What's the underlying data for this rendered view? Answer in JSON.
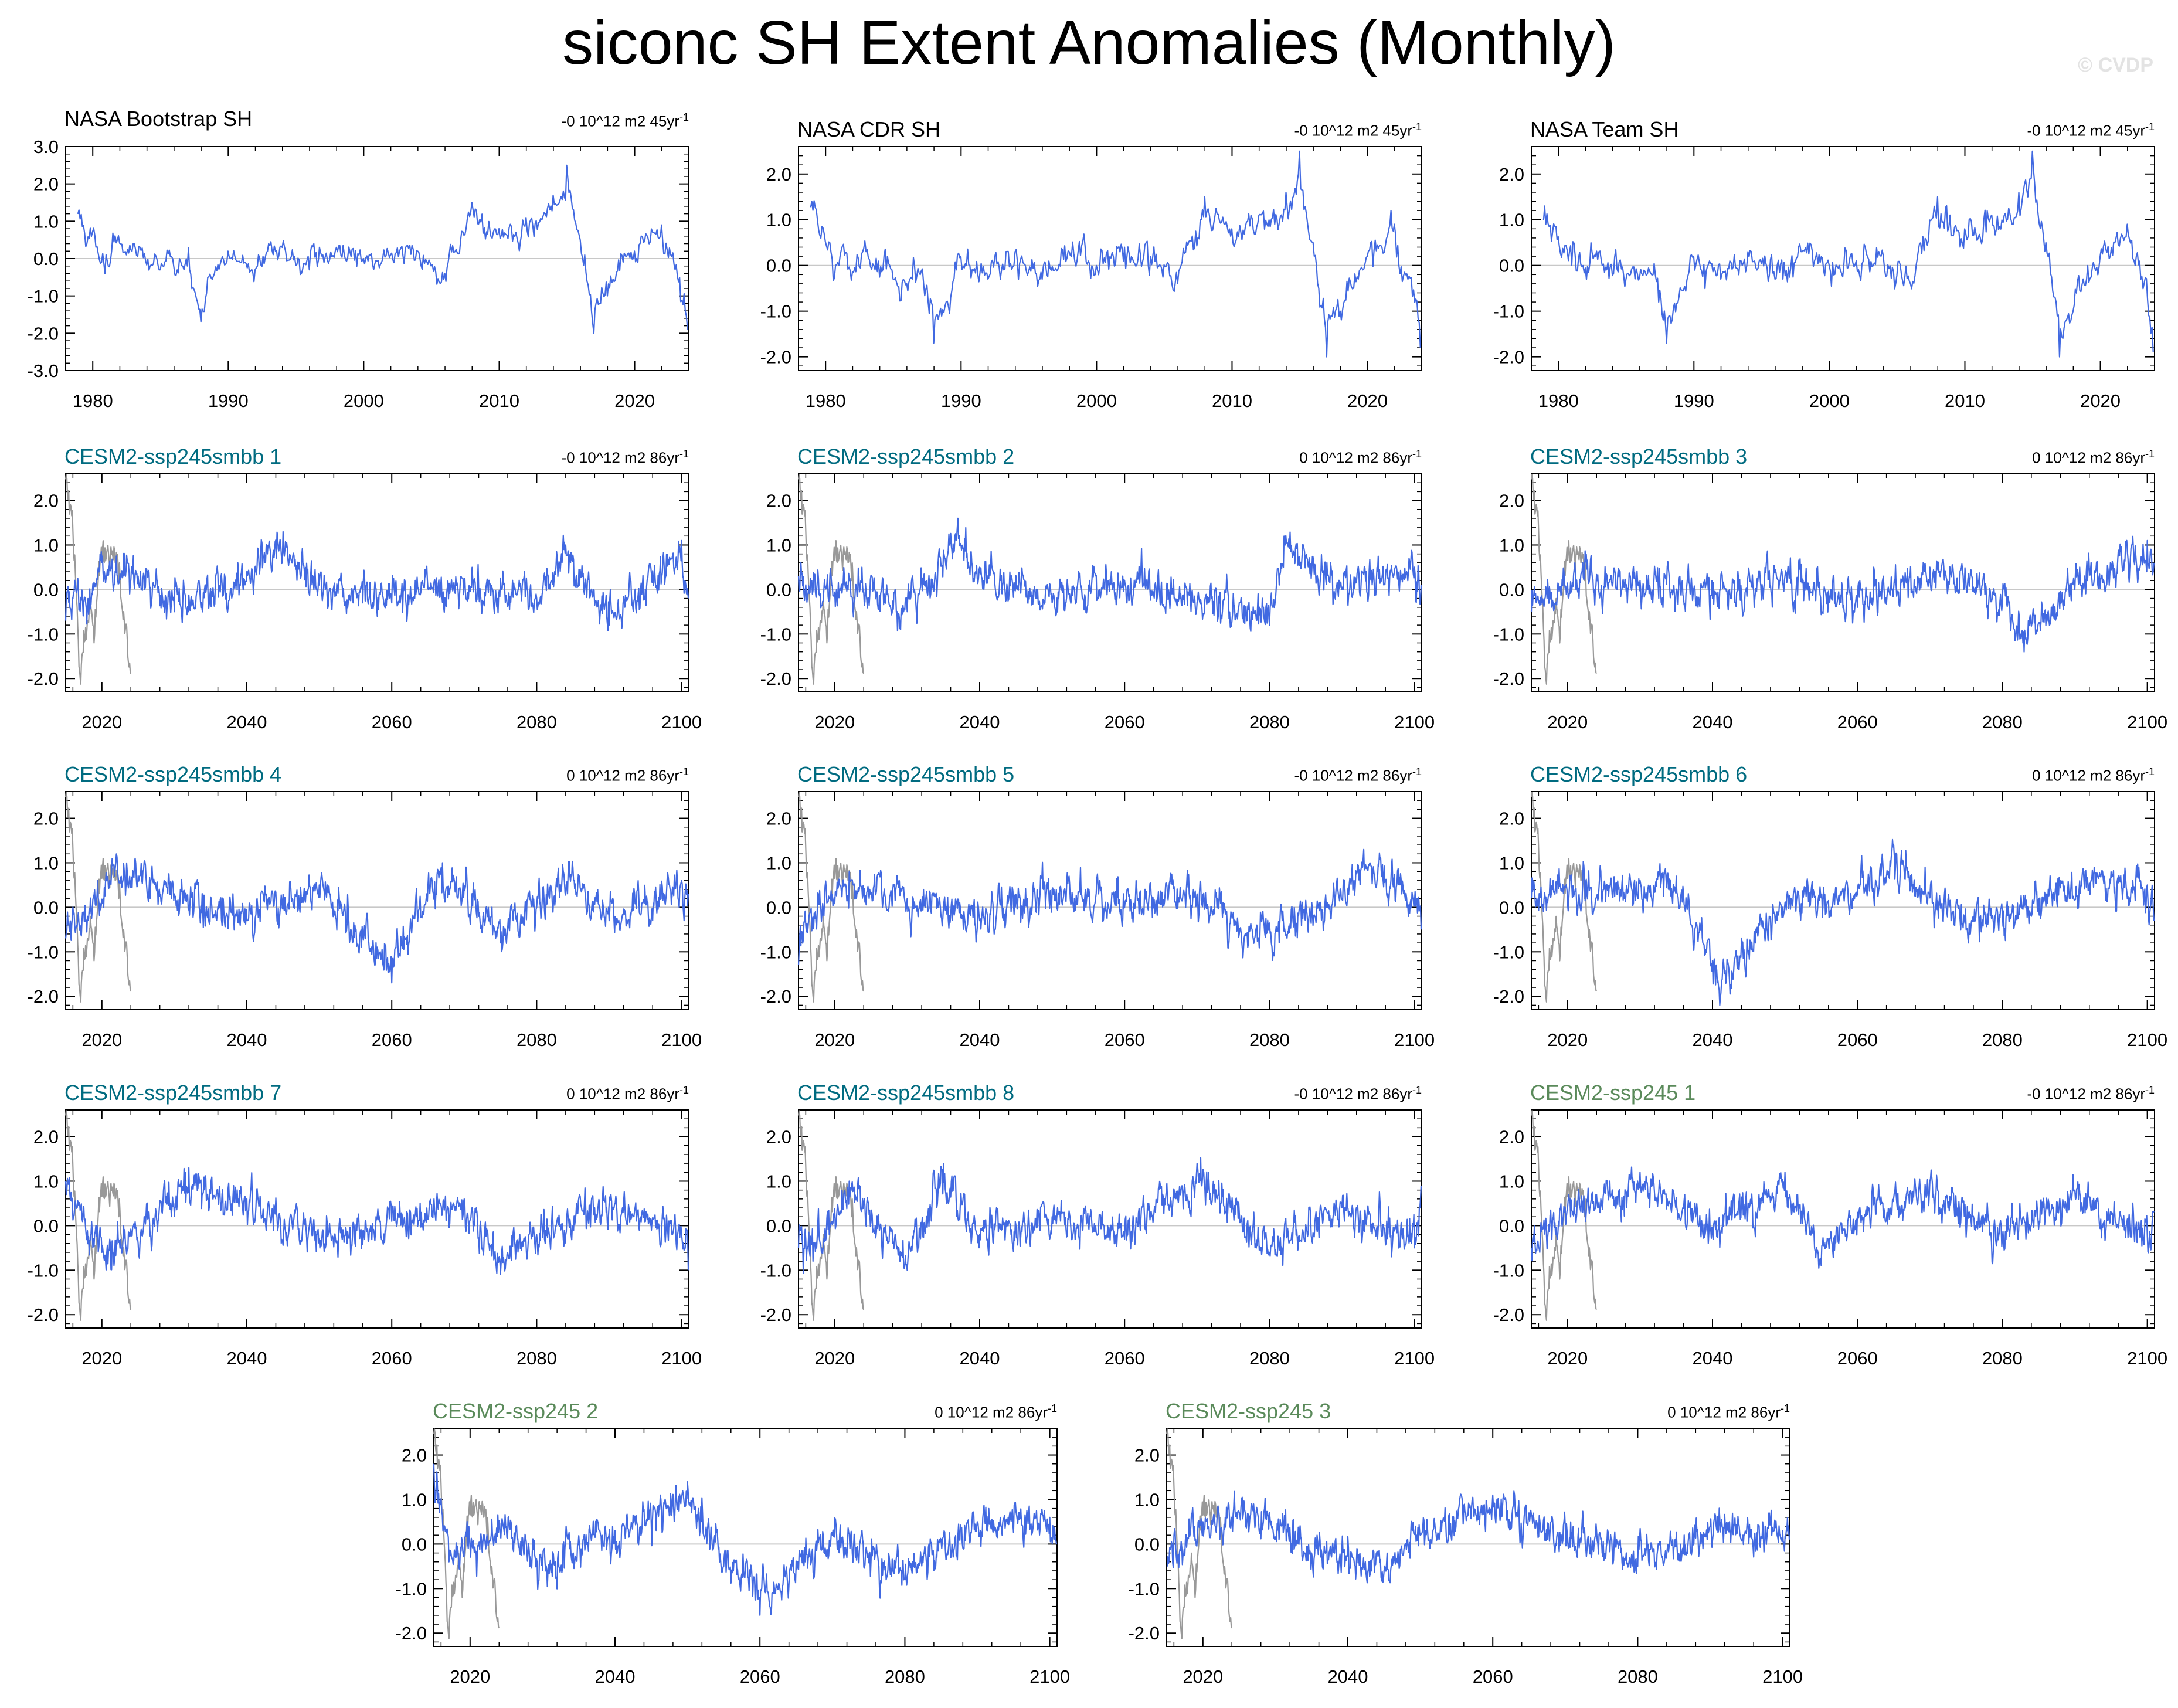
{
  "title": "siconc SH Extent Anomalies (Monthly)",
  "watermark": "© CVDP",
  "colors": {
    "model_line": "#4169e1",
    "obs_overlay": "#999999",
    "zero_line": "#c8c8c8",
    "smbb_title": "#006b80",
    "ssp_title": "#5a8a5a",
    "obs_title": "#000000"
  },
  "panels": [
    {
      "title": "NASA Bootstrap SH",
      "group": "obs",
      "trend": "-0 10^12 m2 45yr",
      "trend_exp": "-1",
      "xlim": [
        1978,
        2024
      ],
      "xticks": [
        1980,
        1990,
        2000,
        2010,
        2020
      ],
      "ylim": [
        -3,
        3
      ],
      "yticks": [
        "3.0",
        "2.0",
        "1.0",
        "0.0",
        "-1.0",
        "-2.0",
        "-3.0"
      ],
      "yvals": [
        3,
        2,
        1,
        0,
        -1,
        -2,
        -3
      ]
    },
    {
      "title": "NASA CDR SH",
      "group": "obs",
      "trend": "-0 10^12 m2 45yr",
      "trend_exp": "-1",
      "xlim": [
        1978,
        2024
      ],
      "xticks": [
        1980,
        1990,
        2000,
        2010,
        2020
      ],
      "ylim": [
        -2.3,
        2.6
      ],
      "yticks": [
        "2.0",
        "1.0",
        "0.0",
        "-1.0",
        "-2.0"
      ],
      "yvals": [
        2,
        1,
        0,
        -1,
        -2
      ]
    },
    {
      "title": "NASA Team SH",
      "group": "obs",
      "trend": "-0 10^12 m2 45yr",
      "trend_exp": "-1",
      "xlim": [
        1978,
        2024
      ],
      "xticks": [
        1980,
        1990,
        2000,
        2010,
        2020
      ],
      "ylim": [
        -2.3,
        2.6
      ],
      "yticks": [
        "2.0",
        "1.0",
        "0.0",
        "-1.0",
        "-2.0"
      ],
      "yvals": [
        2,
        1,
        0,
        -1,
        -2
      ]
    },
    {
      "title": "CESM2-ssp245smbb 1",
      "group": "smbb",
      "trend": "-0 10^12 m2 86yr",
      "trend_exp": "-1",
      "xlim": [
        2015,
        2101
      ],
      "xticks": [
        2020,
        2040,
        2060,
        2080,
        2100
      ],
      "ylim": [
        -2.3,
        2.6
      ],
      "yticks": [
        "2.0",
        "1.0",
        "0.0",
        "-1.0",
        "-2.0"
      ],
      "yvals": [
        2,
        1,
        0,
        -1,
        -2
      ]
    },
    {
      "title": "CESM2-ssp245smbb 2",
      "group": "smbb",
      "trend": "0 10^12 m2 86yr",
      "trend_exp": "-1",
      "xlim": [
        2015,
        2101
      ],
      "xticks": [
        2020,
        2040,
        2060,
        2080,
        2100
      ],
      "ylim": [
        -2.3,
        2.6
      ],
      "yticks": [
        "2.0",
        "1.0",
        "0.0",
        "-1.0",
        "-2.0"
      ],
      "yvals": [
        2,
        1,
        0,
        -1,
        -2
      ]
    },
    {
      "title": "CESM2-ssp245smbb 3",
      "group": "smbb",
      "trend": "0 10^12 m2 86yr",
      "trend_exp": "-1",
      "xlim": [
        2015,
        2101
      ],
      "xticks": [
        2020,
        2040,
        2060,
        2080,
        2100
      ],
      "ylim": [
        -2.3,
        2.6
      ],
      "yticks": [
        "2.0",
        "1.0",
        "0.0",
        "-1.0",
        "-2.0"
      ],
      "yvals": [
        2,
        1,
        0,
        -1,
        -2
      ]
    },
    {
      "title": "CESM2-ssp245smbb 4",
      "group": "smbb",
      "trend": "0 10^12 m2 86yr",
      "trend_exp": "-1",
      "xlim": [
        2015,
        2101
      ],
      "xticks": [
        2020,
        2040,
        2060,
        2080,
        2100
      ],
      "ylim": [
        -2.3,
        2.6
      ],
      "yticks": [
        "2.0",
        "1.0",
        "0.0",
        "-1.0",
        "-2.0"
      ],
      "yvals": [
        2,
        1,
        0,
        -1,
        -2
      ]
    },
    {
      "title": "CESM2-ssp245smbb 5",
      "group": "smbb",
      "trend": "-0 10^12 m2 86yr",
      "trend_exp": "-1",
      "xlim": [
        2015,
        2101
      ],
      "xticks": [
        2020,
        2040,
        2060,
        2080,
        2100
      ],
      "ylim": [
        -2.3,
        2.6
      ],
      "yticks": [
        "2.0",
        "1.0",
        "0.0",
        "-1.0",
        "-2.0"
      ],
      "yvals": [
        2,
        1,
        0,
        -1,
        -2
      ]
    },
    {
      "title": "CESM2-ssp245smbb 6",
      "group": "smbb",
      "trend": "0 10^12 m2 86yr",
      "trend_exp": "-1",
      "xlim": [
        2015,
        2101
      ],
      "xticks": [
        2020,
        2040,
        2060,
        2080,
        2100
      ],
      "ylim": [
        -2.3,
        2.6
      ],
      "yticks": [
        "2.0",
        "1.0",
        "0.0",
        "-1.0",
        "-2.0"
      ],
      "yvals": [
        2,
        1,
        0,
        -1,
        -2
      ]
    },
    {
      "title": "CESM2-ssp245smbb 7",
      "group": "smbb",
      "trend": "0 10^12 m2 86yr",
      "trend_exp": "-1",
      "xlim": [
        2015,
        2101
      ],
      "xticks": [
        2020,
        2040,
        2060,
        2080,
        2100
      ],
      "ylim": [
        -2.3,
        2.6
      ],
      "yticks": [
        "2.0",
        "1.0",
        "0.0",
        "-1.0",
        "-2.0"
      ],
      "yvals": [
        2,
        1,
        0,
        -1,
        -2
      ]
    },
    {
      "title": "CESM2-ssp245smbb 8",
      "group": "smbb",
      "trend": "-0 10^12 m2 86yr",
      "trend_exp": "-1",
      "xlim": [
        2015,
        2101
      ],
      "xticks": [
        2020,
        2040,
        2060,
        2080,
        2100
      ],
      "ylim": [
        -2.3,
        2.6
      ],
      "yticks": [
        "2.0",
        "1.0",
        "0.0",
        "-1.0",
        "-2.0"
      ],
      "yvals": [
        2,
        1,
        0,
        -1,
        -2
      ]
    },
    {
      "title": "CESM2-ssp245 1",
      "group": "ssp",
      "trend": "-0 10^12 m2 86yr",
      "trend_exp": "-1",
      "xlim": [
        2015,
        2101
      ],
      "xticks": [
        2020,
        2040,
        2060,
        2080,
        2100
      ],
      "ylim": [
        -2.3,
        2.6
      ],
      "yticks": [
        "2.0",
        "1.0",
        "0.0",
        "-1.0",
        "-2.0"
      ],
      "yvals": [
        2,
        1,
        0,
        -1,
        -2
      ]
    },
    {
      "title": "CESM2-ssp245 2",
      "group": "ssp",
      "trend": "0 10^12 m2 86yr",
      "trend_exp": "-1",
      "xlim": [
        2015,
        2101
      ],
      "xticks": [
        2020,
        2040,
        2060,
        2080,
        2100
      ],
      "ylim": [
        -2.3,
        2.6
      ],
      "yticks": [
        "2.0",
        "1.0",
        "0.0",
        "-1.0",
        "-2.0"
      ],
      "yvals": [
        2,
        1,
        0,
        -1,
        -2
      ]
    },
    {
      "title": "CESM2-ssp245 3",
      "group": "ssp",
      "trend": "0 10^12 m2 86yr",
      "trend_exp": "-1",
      "xlim": [
        2015,
        2101
      ],
      "xticks": [
        2020,
        2040,
        2060,
        2080,
        2100
      ],
      "ylim": [
        -2.3,
        2.6
      ],
      "yticks": [
        "2.0",
        "1.0",
        "0.0",
        "-1.0",
        "-2.0"
      ],
      "yvals": [
        2,
        1,
        0,
        -1,
        -2
      ]
    }
  ],
  "chart_data": [
    {
      "type": "line",
      "title": "NASA Bootstrap SH",
      "x_range": [
        1978.9,
        2023.9
      ],
      "ylim": [
        -3,
        3
      ],
      "series": [
        {
          "name": "NASA Bootstrap SH",
          "x": [
            1979,
            1981,
            1983,
            1985,
            1987,
            1988,
            1990,
            1992,
            1994,
            1996,
            1998,
            2000,
            2002,
            2004,
            2006,
            2008,
            2010,
            2012,
            2014,
            2015,
            2016,
            2017,
            2018,
            2020,
            2022,
            2023,
            2023.9
          ],
          "values": [
            1.3,
            0.1,
            0.4,
            -0.3,
            -0.2,
            -1.7,
            0.2,
            -0.3,
            0.3,
            -0.3,
            0.3,
            0.0,
            0.1,
            0.2,
            -0.4,
            1.5,
            0.8,
            1.1,
            1.7,
            2.5,
            0.5,
            -2.0,
            -1.0,
            0.2,
            0.9,
            -0.3,
            -1.9
          ]
        }
      ]
    },
    {
      "type": "line",
      "title": "NASA CDR SH",
      "x_range": [
        1978.9,
        2023.9
      ],
      "ylim": [
        -2.3,
        2.6
      ],
      "series": [
        {
          "name": "NASA CDR SH",
          "x": [
            1979,
            1981,
            1983,
            1985,
            1987,
            1988,
            1990,
            1992,
            1994,
            1996,
            1998,
            2000,
            2002,
            2004,
            2006,
            2008,
            2010,
            2012,
            2014,
            2015,
            2016,
            2017,
            2018,
            2020,
            2022,
            2023,
            2023.9
          ],
          "values": [
            1.4,
            0.0,
            0.3,
            -0.3,
            -0.2,
            -1.7,
            0.2,
            -0.3,
            0.3,
            -0.3,
            0.3,
            0.0,
            0.1,
            0.2,
            -0.4,
            1.5,
            0.8,
            1.1,
            1.6,
            2.5,
            0.5,
            -2.0,
            -1.0,
            0.2,
            0.9,
            -0.3,
            -1.8
          ]
        }
      ]
    },
    {
      "type": "line",
      "title": "NASA Team SH",
      "x_range": [
        1978.9,
        2023.9
      ],
      "ylim": [
        -2.3,
        2.6
      ],
      "series": [
        {
          "name": "NASA Team SH",
          "x": [
            1979,
            1981,
            1983,
            1985,
            1987,
            1988,
            1990,
            1992,
            1994,
            1996,
            1998,
            2000,
            2002,
            2004,
            2006,
            2008,
            2010,
            2012,
            2014,
            2015,
            2016,
            2017,
            2018,
            2020,
            2022,
            2023,
            2023.9
          ],
          "values": [
            1.3,
            0.0,
            0.3,
            -0.3,
            -0.2,
            -1.7,
            0.2,
            -0.3,
            0.3,
            -0.3,
            0.3,
            0.0,
            0.1,
            0.2,
            -0.4,
            1.5,
            0.8,
            1.1,
            1.6,
            2.5,
            0.5,
            -2.0,
            -1.0,
            0.2,
            0.9,
            -0.3,
            -1.9
          ]
        }
      ]
    },
    {
      "type": "line",
      "title": "CESM2-ssp245smbb 1",
      "x_range": [
        2015,
        2101
      ],
      "ylim": [
        -2.3,
        2.6
      ],
      "note": "monthly series; key excursions",
      "series": [
        {
          "x": [
            2015,
            2016,
            2018,
            2020,
            2025,
            2030,
            2040,
            2045,
            2050,
            2060,
            2070,
            2080,
            2084,
            2090,
            2095,
            2100,
            2101
          ],
          "values": [
            -0.7,
            -0.2,
            -0.3,
            0.6,
            0.3,
            -0.5,
            0.4,
            1.3,
            0.1,
            -0.3,
            0.2,
            -0.2,
            1.0,
            -0.8,
            0.0,
            1.1,
            -0.2
          ]
        }
      ]
    },
    {
      "type": "line",
      "title": "CESM2-ssp245smbb 2",
      "x_range": [
        2015,
        2101
      ],
      "ylim": [
        -2.3,
        2.6
      ],
      "series": [
        {
          "x": [
            2015,
            2018,
            2022,
            2030,
            2037,
            2040,
            2050,
            2060,
            2070,
            2080,
            2082,
            2090,
            2100,
            2101
          ],
          "values": [
            0.3,
            -0.1,
            0.2,
            -0.5,
            1.6,
            0.5,
            -0.3,
            0.2,
            -0.3,
            -0.8,
            1.2,
            0.0,
            0.5,
            0.1
          ]
        }
      ]
    },
    {
      "type": "line",
      "title": "CESM2-ssp245smbb 3",
      "x_range": [
        2015,
        2101
      ],
      "ylim": [
        -2.3,
        2.6
      ],
      "series": [
        {
          "x": [
            2015,
            2018,
            2022,
            2030,
            2040,
            2050,
            2060,
            2070,
            2080,
            2083,
            2090,
            2100,
            2101
          ],
          "values": [
            -0.5,
            -0.3,
            0.4,
            0.2,
            -0.2,
            0.3,
            -0.4,
            0.5,
            -0.3,
            -1.4,
            0.0,
            1.1,
            0.6
          ]
        }
      ]
    },
    {
      "type": "line",
      "title": "CESM2-ssp245smbb 4",
      "x_range": [
        2015,
        2101
      ],
      "ylim": [
        -2.3,
        2.6
      ],
      "series": [
        {
          "x": [
            2015,
            2018,
            2022,
            2030,
            2040,
            2050,
            2060,
            2067,
            2075,
            2085,
            2090,
            2100,
            2101
          ],
          "values": [
            -0.7,
            -0.2,
            1.2,
            0.3,
            -0.3,
            0.5,
            -1.7,
            1.0,
            -0.8,
            0.9,
            -0.3,
            0.6,
            0.3
          ]
        }
      ]
    },
    {
      "type": "line",
      "title": "CESM2-ssp245smbb 5",
      "x_range": [
        2015,
        2101
      ],
      "ylim": [
        -2.3,
        2.6
      ],
      "series": [
        {
          "x": [
            2015,
            2016,
            2022,
            2030,
            2040,
            2050,
            2060,
            2070,
            2077,
            2090,
            2093,
            2100,
            2101
          ],
          "values": [
            -1.3,
            -0.4,
            0.8,
            0.2,
            -0.3,
            0.4,
            0.0,
            0.3,
            -0.9,
            0.2,
            1.3,
            0.1,
            -0.5
          ]
        }
      ]
    },
    {
      "type": "line",
      "title": "CESM2-ssp245smbb 6",
      "x_range": [
        2015,
        2101
      ],
      "ylim": [
        -2.3,
        2.6
      ],
      "series": [
        {
          "x": [
            2015,
            2018,
            2025,
            2035,
            2041,
            2050,
            2060,
            2065,
            2075,
            2085,
            2095,
            2100,
            2101
          ],
          "values": [
            0.2,
            0.6,
            0.4,
            0.7,
            -2.2,
            0.1,
            0.3,
            1.4,
            -0.5,
            0.2,
            0.8,
            0.5,
            -0.3
          ]
        }
      ]
    },
    {
      "type": "line",
      "title": "CESM2-ssp245smbb 7",
      "x_range": [
        2015,
        2101
      ],
      "ylim": [
        -2.3,
        2.6
      ],
      "series": [
        {
          "x": [
            2015,
            2020,
            2025,
            2032,
            2040,
            2050,
            2060,
            2070,
            2075,
            2080,
            2090,
            2100,
            2101
          ],
          "values": [
            1.0,
            -0.6,
            -0.4,
            1.3,
            0.6,
            -0.3,
            0.1,
            0.6,
            -1.1,
            -0.2,
            0.5,
            -0.2,
            -1.0
          ]
        }
      ]
    },
    {
      "type": "line",
      "title": "CESM2-ssp245smbb 8",
      "x_range": [
        2015,
        2101
      ],
      "ylim": [
        -2.3,
        2.6
      ],
      "series": [
        {
          "x": [
            2015,
            2017,
            2022,
            2030,
            2035,
            2040,
            2050,
            2060,
            2070,
            2080,
            2090,
            2100,
            2101
          ],
          "values": [
            -0.5,
            -0.8,
            1.0,
            -1.0,
            1.4,
            -0.2,
            0.2,
            -0.3,
            1.4,
            -0.6,
            0.4,
            -0.5,
            0.9
          ]
        }
      ]
    },
    {
      "type": "line",
      "title": "CESM2-ssp245 1",
      "x_range": [
        2015,
        2101
      ],
      "ylim": [
        -2.3,
        2.6
      ],
      "series": [
        {
          "x": [
            2015,
            2020,
            2030,
            2040,
            2050,
            2055,
            2060,
            2070,
            2080,
            2090,
            2100,
            2101
          ],
          "values": [
            -0.5,
            0.4,
            1.2,
            -0.1,
            1.2,
            -0.9,
            0.3,
            1.0,
            -0.3,
            0.8,
            -0.2,
            0.3
          ]
        }
      ]
    },
    {
      "type": "line",
      "title": "CESM2-ssp245 2",
      "x_range": [
        2015,
        2101
      ],
      "ylim": [
        -2.3,
        2.6
      ],
      "series": [
        {
          "x": [
            2015,
            2018,
            2025,
            2030,
            2040,
            2050,
            2055,
            2060,
            2070,
            2080,
            2090,
            2100,
            2101
          ],
          "values": [
            1.8,
            -0.3,
            0.4,
            -0.6,
            0.3,
            1.4,
            -0.5,
            -1.6,
            0.2,
            -0.8,
            0.5,
            0.6,
            0.0
          ]
        }
      ]
    },
    {
      "type": "line",
      "title": "CESM2-ssp245 3",
      "x_range": [
        2015,
        2101
      ],
      "ylim": [
        -2.3,
        2.6
      ],
      "series": [
        {
          "x": [
            2015,
            2020,
            2027,
            2035,
            2045,
            2050,
            2060,
            2065,
            2070,
            2080,
            2090,
            2100,
            2101
          ],
          "values": [
            -0.5,
            0.5,
            0.9,
            -0.2,
            -0.6,
            0.2,
            1.1,
            0.7,
            0.4,
            -0.5,
            0.4,
            0.3,
            0.1
          ]
        }
      ]
    }
  ]
}
